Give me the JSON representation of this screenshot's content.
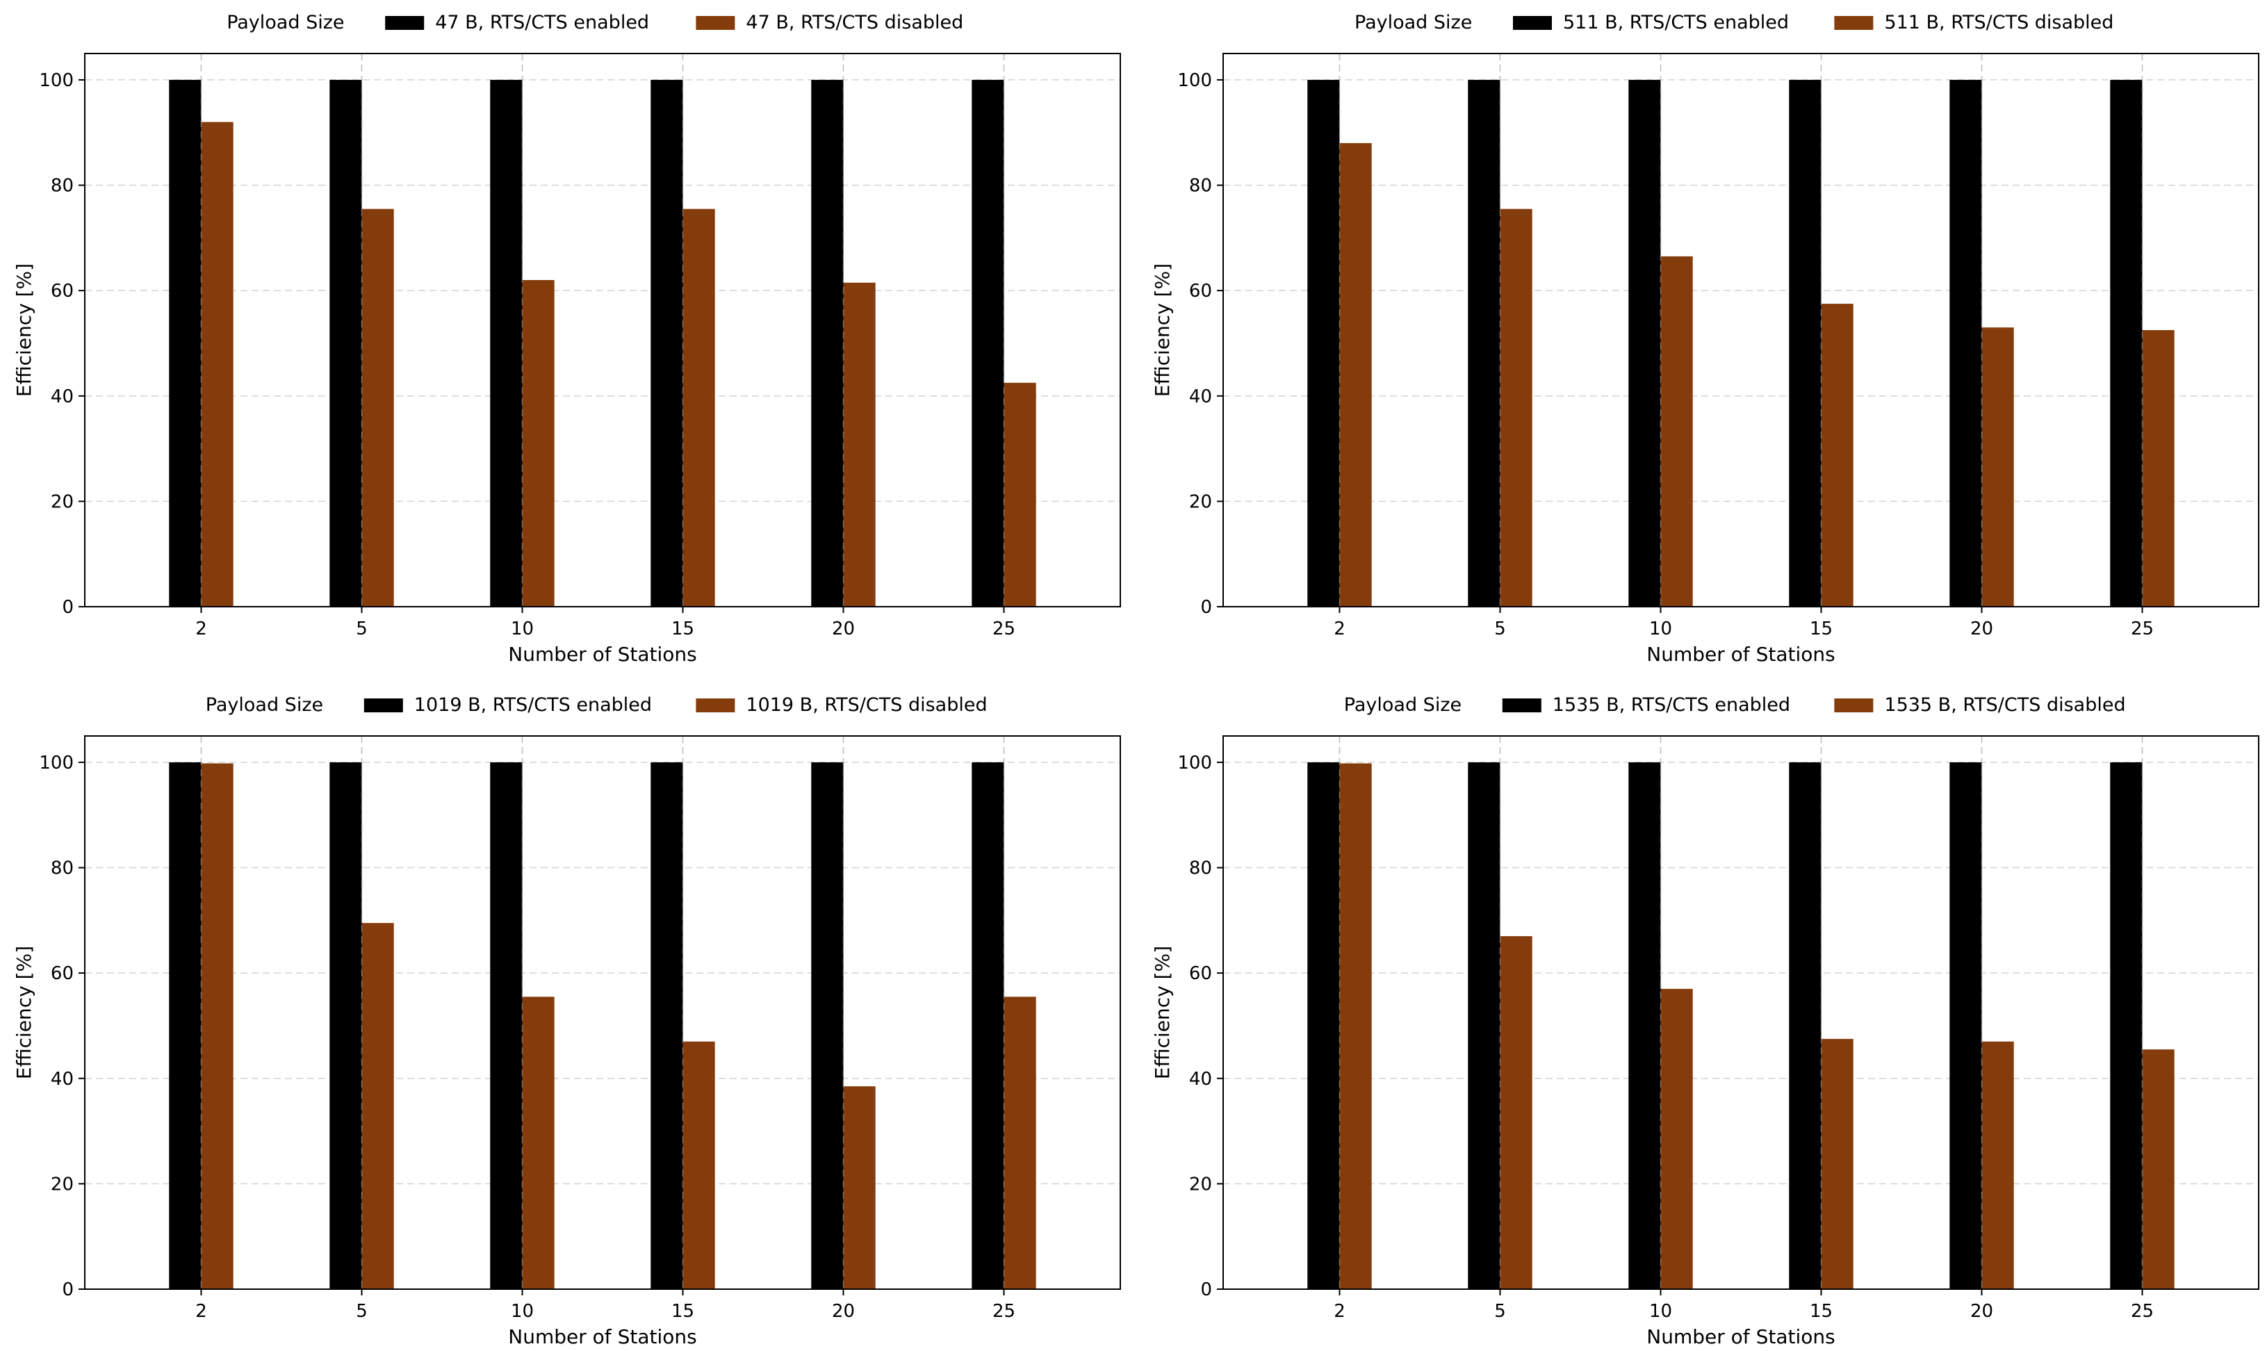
{
  "chart_data": [
    {
      "type": "bar",
      "legend_title": "Payload Size",
      "legend_position": "top-center",
      "categories": [
        "2",
        "5",
        "10",
        "15",
        "20",
        "25"
      ],
      "series": [
        {
          "name": "47 B, RTS/CTS enabled",
          "color": "#000000",
          "values": [
            100,
            100,
            100,
            100,
            100,
            100
          ]
        },
        {
          "name": "47 B, RTS/CTS disabled",
          "color": "#843c0c",
          "values": [
            92,
            75.5,
            62,
            75.5,
            61.5,
            42.5
          ]
        }
      ],
      "xlabel": "Number of Stations",
      "ylabel": "Efficiency [%]",
      "ylim": [
        0,
        105
      ],
      "yticks": [
        0,
        20,
        40,
        60,
        80,
        100
      ],
      "grid": true
    },
    {
      "type": "bar",
      "legend_title": "Payload Size",
      "legend_position": "top-center",
      "categories": [
        "2",
        "5",
        "10",
        "15",
        "20",
        "25"
      ],
      "series": [
        {
          "name": "511 B, RTS/CTS enabled",
          "color": "#000000",
          "values": [
            100,
            100,
            100,
            100,
            100,
            100
          ]
        },
        {
          "name": "511 B, RTS/CTS disabled",
          "color": "#843c0c",
          "values": [
            88,
            75.5,
            66.5,
            57.5,
            53,
            52.5
          ]
        }
      ],
      "xlabel": "Number of Stations",
      "ylabel": "Efficiency [%]",
      "ylim": [
        0,
        105
      ],
      "yticks": [
        0,
        20,
        40,
        60,
        80,
        100
      ],
      "grid": true
    },
    {
      "type": "bar",
      "legend_title": "Payload Size",
      "legend_position": "top-center",
      "categories": [
        "2",
        "5",
        "10",
        "15",
        "20",
        "25"
      ],
      "series": [
        {
          "name": "1019 B, RTS/CTS enabled",
          "color": "#000000",
          "values": [
            100,
            100,
            100,
            100,
            100,
            100
          ]
        },
        {
          "name": "1019 B, RTS/CTS disabled",
          "color": "#843c0c",
          "values": [
            99.8,
            69.5,
            55.5,
            47,
            38.5,
            55.5
          ]
        }
      ],
      "xlabel": "Number of Stations",
      "ylabel": "Efficiency [%]",
      "ylim": [
        0,
        105
      ],
      "yticks": [
        0,
        20,
        40,
        60,
        80,
        100
      ],
      "grid": true
    },
    {
      "type": "bar",
      "legend_title": "Payload Size",
      "legend_position": "top-center",
      "categories": [
        "2",
        "5",
        "10",
        "15",
        "20",
        "25"
      ],
      "series": [
        {
          "name": "1535 B, RTS/CTS enabled",
          "color": "#000000",
          "values": [
            100,
            100,
            100,
            100,
            100,
            100
          ]
        },
        {
          "name": "1535 B, RTS/CTS disabled",
          "color": "#843c0c",
          "values": [
            99.8,
            67,
            57,
            47.5,
            47,
            45.5
          ]
        }
      ],
      "xlabel": "Number of Stations",
      "ylabel": "Efficiency [%]",
      "ylim": [
        0,
        105
      ],
      "yticks": [
        0,
        20,
        40,
        60,
        80,
        100
      ],
      "grid": true
    }
  ]
}
